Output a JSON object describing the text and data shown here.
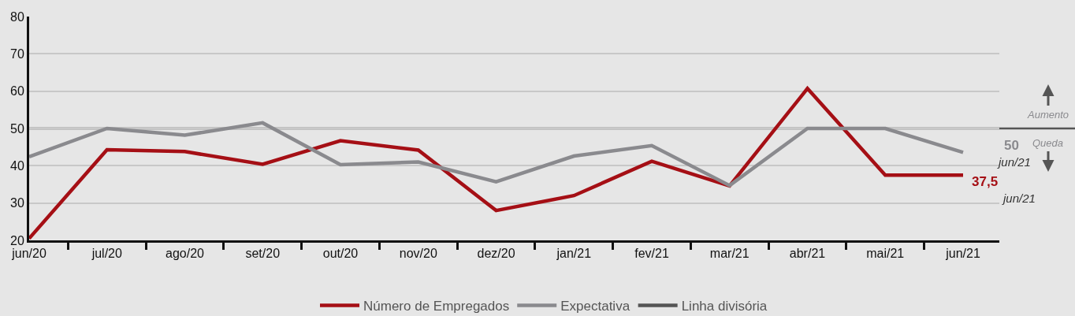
{
  "chart_data": {
    "type": "line",
    "categories": [
      "jun/20",
      "jul/20",
      "ago/20",
      "set/20",
      "out/20",
      "nov/20",
      "dez/20",
      "jan/21",
      "fev/21",
      "mar/21",
      "abr/21",
      "mai/21",
      "jun/21"
    ],
    "ylim": [
      20,
      80
    ],
    "yticks": [
      20,
      30,
      40,
      50,
      60,
      70,
      80
    ],
    "grid": "y",
    "legend": "bottom",
    "series": [
      {
        "name": "Número de Empregados",
        "color": "#a50f15",
        "values": [
          20.5,
          44.3,
          43.8,
          40.4,
          46.7,
          44.2,
          28,
          32,
          41.2,
          34.6,
          60.7,
          37.5,
          37.5
        ],
        "value_labels": [
          null,
          null,
          null,
          null,
          null,
          null,
          null,
          null,
          null,
          null,
          null,
          null,
          "37,5"
        ]
      },
      {
        "name": "Expectativa",
        "color": "#8a8a8e",
        "values": [
          42.4,
          50,
          48.2,
          51.5,
          40.3,
          41,
          35.7,
          42.6,
          45.4,
          34.7,
          50,
          50,
          43.6
        ]
      }
    ],
    "ref_lines": [
      {
        "axis": "y",
        "value": 50,
        "label": "Linha divisória",
        "color": "#555555"
      }
    ],
    "annotations": [
      "50",
      "jun/21",
      "jun/21",
      "Aumento",
      "Queda"
    ]
  }
}
